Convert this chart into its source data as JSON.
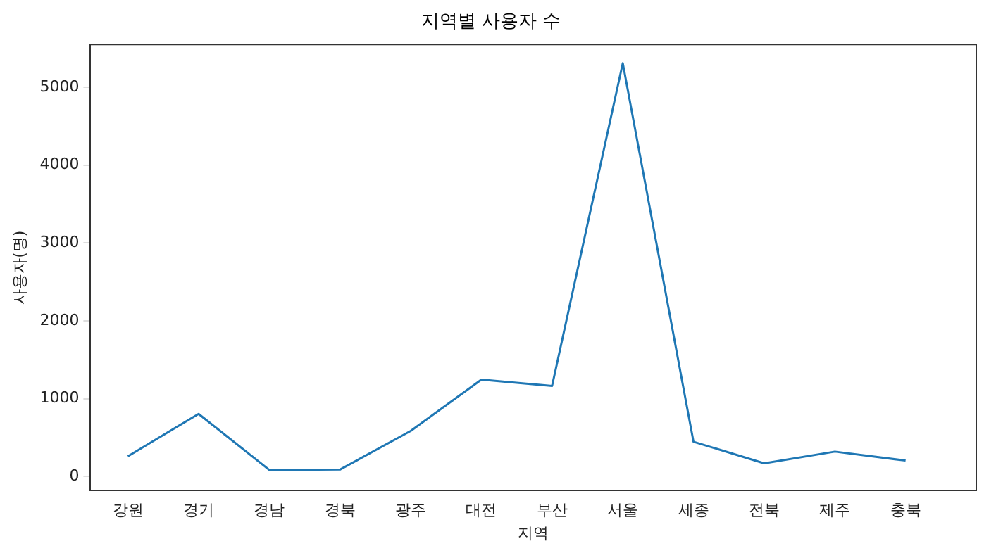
{
  "chart_data": {
    "type": "line",
    "title": "지역별 사용자 수",
    "xlabel": "지역",
    "ylabel": "사용자(명)",
    "categories": [
      "강원",
      "경기",
      "경남",
      "경북",
      "광주",
      "대전",
      "부산",
      "서울",
      "세종",
      "전북",
      "제주",
      "충북"
    ],
    "series": [
      {
        "color": "#1f77b4",
        "values": [
          260,
          805,
          85,
          90,
          585,
          1245,
          1165,
          5310,
          447,
          170,
          320,
          205
        ]
      }
    ],
    "ylim": [
      -180,
      5550
    ],
    "yticks": [
      0,
      1000,
      2000,
      3000,
      4000,
      5000
    ],
    "grid": false,
    "legend": false,
    "marker": "none",
    "line_style": "solid"
  }
}
